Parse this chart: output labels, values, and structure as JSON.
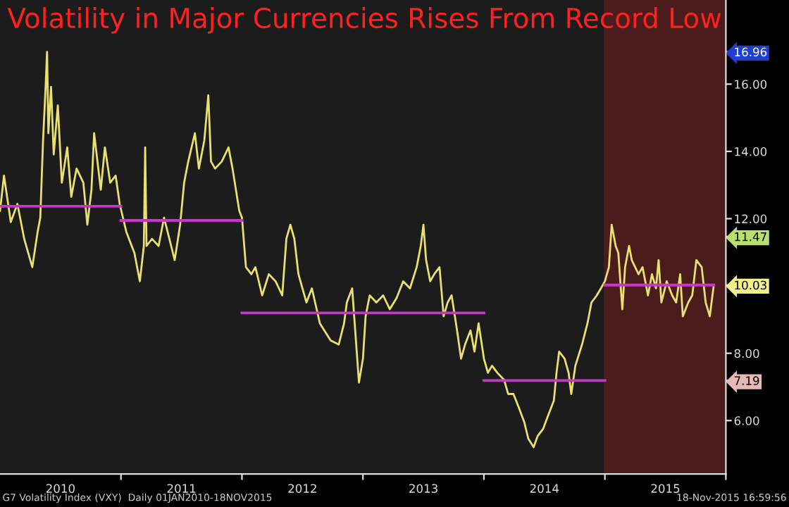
{
  "chart_data": {
    "type": "line",
    "title": "Volatility in Major Currencies Rises From Record Low",
    "xlim": [
      2010,
      2016
    ],
    "ylim": [
      4.41,
      18.5
    ],
    "xticks": [
      {
        "value": 2010.5,
        "label": "2010"
      },
      {
        "value": 2011,
        "label": null
      },
      {
        "value": 2011.5,
        "label": "2011"
      },
      {
        "value": 2012,
        "label": null
      },
      {
        "value": 2012.5,
        "label": "2012"
      },
      {
        "value": 2013,
        "label": null
      },
      {
        "value": 2013.5,
        "label": "2013"
      },
      {
        "value": 2014,
        "label": null
      },
      {
        "value": 2014.5,
        "label": "2014"
      },
      {
        "value": 2015,
        "label": null
      },
      {
        "value": 2015.5,
        "label": "2015"
      },
      {
        "value": 2016,
        "label": null
      }
    ],
    "yticks": [
      {
        "value": 6,
        "label": "6.00"
      },
      {
        "value": 8,
        "label": "8.00"
      },
      {
        "value": 12,
        "label": "12.00"
      },
      {
        "value": 14,
        "label": "14.00"
      },
      {
        "value": 16,
        "label": "16.00"
      },
      16.96,
      11.47,
      10.03,
      7.19
    ],
    "grid": false,
    "legend": false,
    "bands": [
      {
        "axis": "x",
        "from": 2015,
        "to": 2016,
        "color": "#4a1c1c"
      }
    ],
    "series": [
      {
        "color": "#e8e070",
        "x": [
          2010.0,
          2010.033,
          2010.089,
          2010.144,
          2010.2,
          2010.267,
          2010.311,
          2010.333,
          2010.356,
          2010.378,
          2010.389,
          2010.4,
          2010.422,
          2010.444,
          2010.478,
          2010.511,
          2010.556,
          2010.589,
          2010.633,
          2010.689,
          2010.722,
          2010.756,
          2010.778,
          2010.833,
          2010.867,
          2010.911,
          2010.956,
          2010.989,
          2011.044,
          2011.111,
          2011.156,
          2011.189,
          2011.2,
          2011.211,
          2011.256,
          2011.311,
          2011.356,
          2011.4,
          2011.444,
          2011.489,
          2011.522,
          2011.556,
          2011.611,
          2011.644,
          2011.689,
          2011.722,
          2011.744,
          2011.778,
          2011.833,
          2011.889,
          2011.922,
          2011.978,
          2012.0,
          2012.033,
          2012.078,
          2012.111,
          2012.167,
          2012.222,
          2012.278,
          2012.333,
          2012.367,
          2012.4,
          2012.433,
          2012.467,
          2012.533,
          2012.578,
          2012.644,
          2012.733,
          2012.8,
          2012.844,
          2012.867,
          2012.911,
          2012.967,
          2013.0,
          2013.022,
          2013.056,
          2013.111,
          2013.167,
          2013.222,
          2013.278,
          2013.333,
          2013.389,
          2013.444,
          2013.478,
          2013.5,
          2013.522,
          2013.556,
          2013.589,
          2013.633,
          2013.667,
          2013.7,
          2013.733,
          2013.778,
          2013.811,
          2013.844,
          2013.889,
          2013.922,
          2013.956,
          2014.0,
          2014.033,
          2014.067,
          2014.111,
          2014.167,
          2014.2,
          2014.244,
          2014.289,
          2014.333,
          2014.367,
          2014.411,
          2014.444,
          2014.489,
          2014.533,
          2014.578,
          2014.6,
          2014.622,
          2014.667,
          2014.7,
          2014.722,
          2014.756,
          2014.811,
          2014.856,
          2014.889,
          2014.933,
          2014.967,
          2015.0,
          2015.033,
          2015.056,
          2015.089,
          2015.111,
          2015.144,
          2015.167,
          2015.2,
          2015.222,
          2015.278,
          2015.311,
          2015.356,
          2015.389,
          2015.422,
          2015.444,
          2015.467,
          2015.511,
          2015.556,
          2015.589,
          2015.622,
          2015.644,
          2015.689,
          2015.722,
          2015.756,
          2015.8,
          2015.833,
          2015.867,
          2015.889,
          2015.9
        ],
        "values": [
          12.23,
          13.28,
          11.9,
          12.44,
          11.4,
          10.56,
          11.61,
          12.03,
          14.33,
          16.0,
          16.96,
          14.54,
          15.92,
          13.91,
          15.37,
          13.07,
          14.12,
          12.65,
          13.49,
          13.07,
          11.82,
          12.86,
          14.54,
          12.86,
          14.12,
          13.07,
          13.28,
          12.44,
          11.61,
          10.98,
          10.14,
          11.19,
          14.12,
          11.19,
          11.4,
          11.19,
          12.03,
          11.4,
          10.77,
          11.82,
          13.07,
          13.7,
          14.54,
          13.49,
          14.33,
          15.67,
          13.7,
          13.49,
          13.7,
          14.12,
          13.49,
          12.23,
          12.03,
          10.56,
          10.35,
          10.56,
          9.72,
          10.35,
          10.14,
          9.72,
          11.4,
          11.82,
          11.4,
          10.35,
          9.51,
          9.93,
          8.89,
          8.38,
          8.26,
          8.89,
          9.51,
          9.93,
          7.13,
          7.84,
          9.1,
          9.72,
          9.51,
          9.72,
          9.31,
          9.64,
          10.14,
          9.93,
          10.56,
          11.19,
          11.82,
          10.77,
          10.14,
          10.35,
          10.56,
          9.1,
          9.51,
          9.72,
          8.68,
          7.84,
          8.26,
          8.68,
          8.05,
          8.89,
          7.84,
          7.42,
          7.63,
          7.42,
          7.21,
          6.79,
          6.79,
          6.38,
          5.96,
          5.46,
          5.21,
          5.54,
          5.75,
          6.17,
          6.59,
          7.42,
          8.05,
          7.84,
          7.42,
          6.79,
          7.63,
          8.26,
          8.89,
          9.51,
          9.72,
          9.93,
          10.14,
          10.56,
          11.82,
          11.19,
          10.98,
          9.31,
          10.56,
          11.19,
          10.77,
          10.35,
          10.56,
          9.72,
          10.35,
          9.93,
          10.77,
          9.51,
          10.14,
          9.72,
          9.51,
          10.35,
          9.1,
          9.51,
          9.72,
          10.77,
          10.56,
          9.51,
          9.1,
          9.72,
          10.03
        ]
      },
      {
        "color": "#cc33cc",
        "x": [
          2010,
          2011,
          null,
          2011,
          2012,
          null,
          2012,
          2014,
          null,
          2014,
          2015,
          null,
          2015,
          2015.9
        ],
        "values": [
          12.37,
          12.37,
          null,
          11.95,
          11.95,
          null,
          9.2,
          9.2,
          null,
          7.19,
          7.19,
          null,
          10.03,
          10.03
        ]
      }
    ],
    "annotations": [
      "G7 Volatility Index (VXY)  Daily 01JAN2010-18NOV2015",
      "18-Nov-2015 16:59:56"
    ]
  }
}
